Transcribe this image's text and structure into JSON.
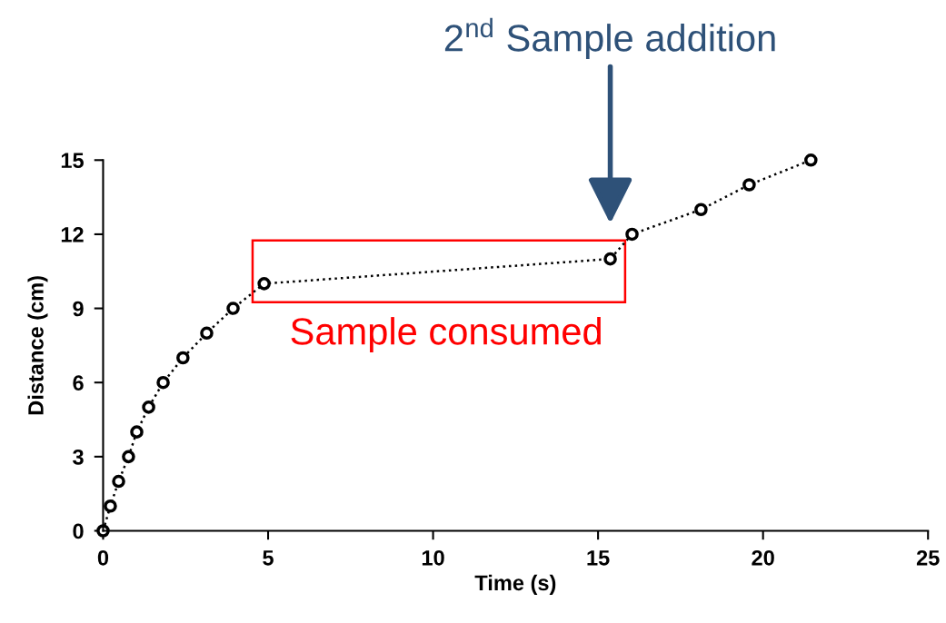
{
  "chart_data": {
    "type": "line",
    "xlabel": "Time (s)",
    "ylabel": "Distance (cm)",
    "x": [
      0,
      0.22,
      0.47,
      0.77,
      1.02,
      1.38,
      1.82,
      2.42,
      3.14,
      3.94,
      4.88,
      15.37,
      16.03,
      18.12,
      19.58,
      21.45
    ],
    "series": [
      {
        "color": "#000000",
        "values": [
          0,
          1,
          2,
          3,
          4,
          5,
          6,
          7,
          8,
          9,
          10,
          11,
          12,
          13,
          14,
          15
        ]
      }
    ],
    "xlim": [
      0,
      25
    ],
    "xticks": [
      0,
      5,
      10,
      15,
      20,
      25
    ],
    "ylim": [
      0,
      15
    ],
    "yticks": [
      0,
      3,
      6,
      9,
      12,
      15
    ],
    "marker": "circle",
    "line_style": "dotted",
    "grid": false,
    "annotations": [
      "2$^{nd}$ Sample addition",
      {
        "text": "Sample consumed",
        "x": 10.4,
        "y": 10.5
      }
    ]
  }
}
